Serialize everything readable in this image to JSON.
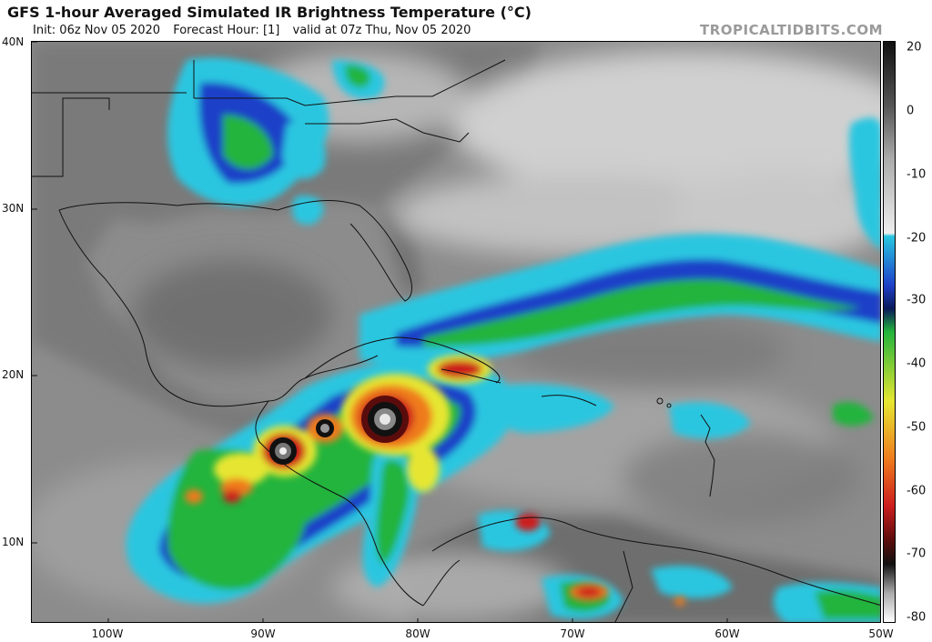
{
  "header": {
    "title": "GFS 1-hour Averaged Simulated IR Brightness Temperature (°C)",
    "init": "Init: 06z Nov 05 2020",
    "forecast_hour": "Forecast Hour: [1]",
    "valid": "valid at 07z Thu, Nov 05 2020",
    "brand": "TROPICALTIDBITS.COM"
  },
  "axes": {
    "lat_labels": [
      "40N",
      "30N",
      "20N",
      "10N"
    ],
    "lon_labels": [
      "100W",
      "90W",
      "80W",
      "70W",
      "60W",
      "50W"
    ]
  },
  "colorbar": {
    "labels": [
      "20",
      "0",
      "-10",
      "-20",
      "-30",
      "-40",
      "-50",
      "-60",
      "-70",
      "-80"
    ],
    "colors": {
      "warm_black": "#111111",
      "gray_dark": "#555555",
      "gray_light": "#e8e8e8",
      "cyan": "#29c6e0",
      "blue": "#1e40c8",
      "navy": "#0a1a5a",
      "green": "#24b43c",
      "yellow": "#e6e632",
      "orange": "#ee7a1e",
      "red": "#cc1e1e",
      "dark_red": "#5a0c0c",
      "white": "#ffffff"
    }
  }
}
